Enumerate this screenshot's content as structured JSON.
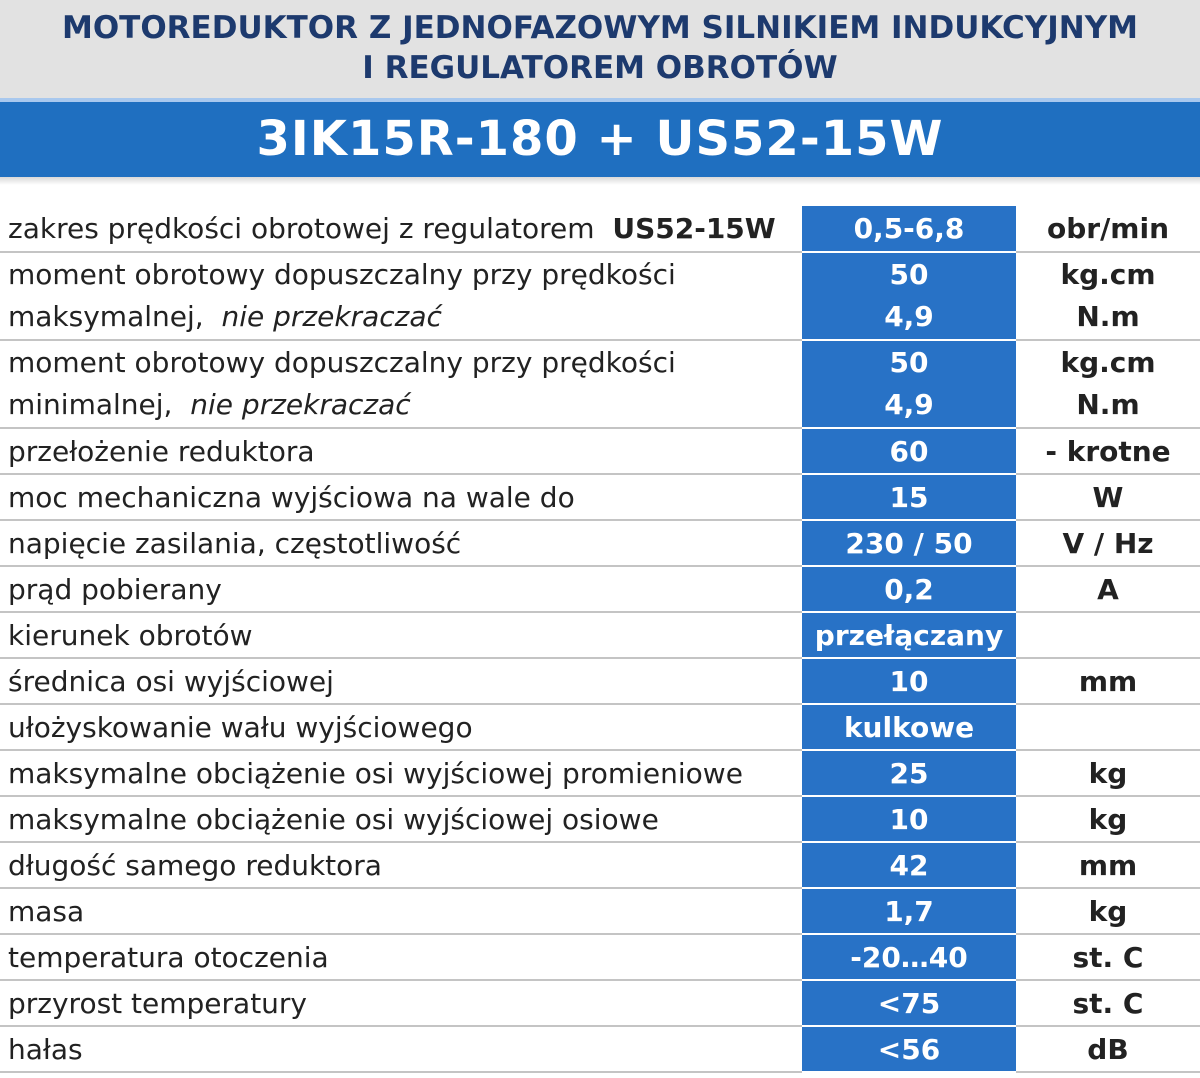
{
  "header": {
    "title_line1": "MOTOREDUKTOR Z JEDNOFAZOWYM SILNIKIEM INDUKCYJNYM",
    "title_line2": "I  REGULATOREM OBROTÓW",
    "model": "3IK15R-180 + US52-15W"
  },
  "rows": [
    {
      "label": "zakres prędkości obrotowej z regulatorem",
      "label_bold": "US52-15W",
      "value": "0,5-6,8",
      "unit": "obr/min"
    },
    {
      "label1": "moment obrotowy dopuszczalny przy prędkości",
      "label2": "maksymalnej,",
      "label2_italic": "nie przekraczać",
      "value1": "50",
      "value2": "4,9",
      "unit1": "kg.cm",
      "unit2": "N.m"
    },
    {
      "label1": "moment obrotowy dopuszczalny przy prędkości",
      "label2": "minimalnej,",
      "label2_italic": "nie przekraczać",
      "value1": "50",
      "value2": "4,9",
      "unit1": "kg.cm",
      "unit2": "N.m"
    },
    {
      "label": "przełożenie reduktora",
      "value": "60",
      "unit": "- krotne"
    },
    {
      "label": "moc mechaniczna wyjściowa na  wale do",
      "value": "15",
      "unit": "W"
    },
    {
      "label": "napięcie zasilania, częstotliwość",
      "value": "230 / 50",
      "unit": "V / Hz"
    },
    {
      "label": "prąd pobierany",
      "value": "0,2",
      "unit": "A"
    },
    {
      "label": "kierunek obrotów",
      "value": "przełączany",
      "unit": ""
    },
    {
      "label": "średnica osi wyjściowej",
      "value": "10",
      "unit": "mm"
    },
    {
      "label": "ułożyskowanie wału wyjściowego",
      "value": "kulkowe",
      "unit": ""
    },
    {
      "label": "maksymalne obciążenie osi wyjściowej promieniowe",
      "value": "25",
      "unit": "kg"
    },
    {
      "label": "maksymalne obciążenie osi wyjściowej  osiowe",
      "value": "10",
      "unit": "kg"
    },
    {
      "label": "długość samego reduktora",
      "value": "42",
      "unit": "mm"
    },
    {
      "label": "masa",
      "value": "1,7",
      "unit": "kg"
    },
    {
      "label": "temperatura otoczenia",
      "value": "-20…40",
      "unit": "st. C"
    },
    {
      "label": "przyrost temperatury",
      "value": "<75",
      "unit": "st. C"
    },
    {
      "label": "hałas",
      "value": "<56",
      "unit": "dB"
    }
  ]
}
